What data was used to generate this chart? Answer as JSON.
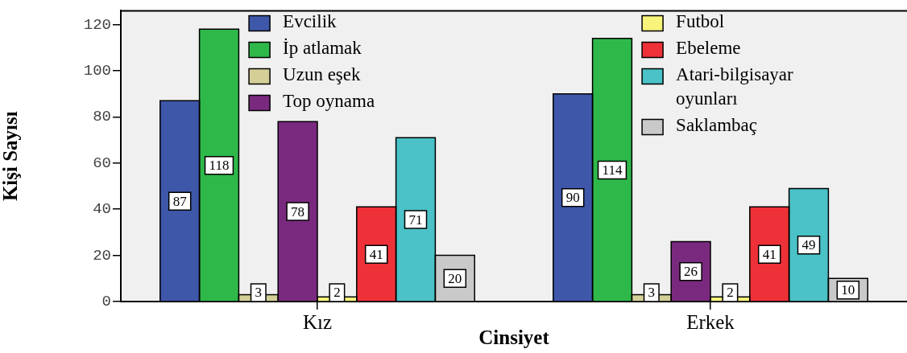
{
  "chart_data": {
    "type": "bar",
    "xlabel": "Cinsiyet",
    "ylabel": "Kişi Sayısı",
    "categories": [
      "Kız",
      "Erkek"
    ],
    "series": [
      {
        "name": "Evcilik",
        "color": "#3e57a9",
        "values": [
          87,
          90
        ]
      },
      {
        "name": "İp atlamak",
        "color": "#2fb84a",
        "values": [
          118,
          114
        ]
      },
      {
        "name": "Uzun eşek",
        "color": "#d4cf97",
        "values": [
          3,
          3
        ]
      },
      {
        "name": "Top oynama",
        "color": "#7a2a7e",
        "values": [
          78,
          26
        ]
      },
      {
        "name": "Futbol",
        "color": "#f7f37b",
        "values": [
          2,
          2
        ]
      },
      {
        "name": "Ebeleme",
        "color": "#ee3138",
        "values": [
          41,
          41
        ]
      },
      {
        "name": "Atari-bilgisayar oyunları",
        "color": "#4ac2c7",
        "values": [
          71,
          49
        ]
      },
      {
        "name": "Saklambaç",
        "color": "#c9c9c9",
        "values": [
          20,
          10
        ]
      }
    ],
    "ylim": [
      0,
      126
    ],
    "yticks": [
      0,
      20,
      40,
      60,
      80,
      100,
      120
    ],
    "grid": false,
    "legend": "top",
    "data_labels": true
  }
}
